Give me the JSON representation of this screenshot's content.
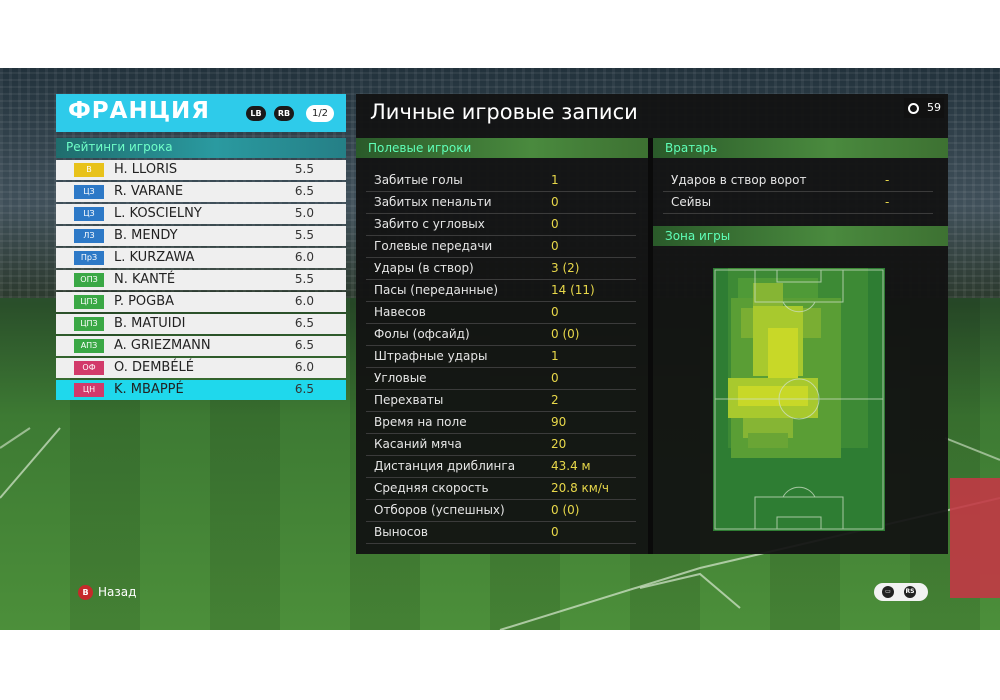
{
  "team": {
    "name": "ФРАНЦИЯ",
    "lb_label": "LB",
    "rb_label": "RB",
    "page_indicator": "1/2"
  },
  "ratings": {
    "title": "Рейтинги игрока",
    "players": [
      {
        "pos": "В",
        "pos_color": "#e8c21a",
        "name": "H. LLORIS",
        "rating": "5.5",
        "selected": false
      },
      {
        "pos": "ЦЗ",
        "pos_color": "#2d79c7",
        "name": "R. VARANE",
        "rating": "6.5",
        "selected": false
      },
      {
        "pos": "ЦЗ",
        "pos_color": "#2d79c7",
        "name": "L. KOSCIELNY",
        "rating": "5.0",
        "selected": false
      },
      {
        "pos": "ЛЗ",
        "pos_color": "#2d79c7",
        "name": "B. MENDY",
        "rating": "5.5",
        "selected": false
      },
      {
        "pos": "ПрЗ",
        "pos_color": "#2d79c7",
        "name": "L. KURZAWA",
        "rating": "6.0",
        "selected": false
      },
      {
        "pos": "ОПЗ",
        "pos_color": "#3aa845",
        "name": "N. KANTÉ",
        "rating": "5.5",
        "selected": false
      },
      {
        "pos": "ЦПЗ",
        "pos_color": "#3aa845",
        "name": "P. POGBA",
        "rating": "6.0",
        "selected": false
      },
      {
        "pos": "ЦПЗ",
        "pos_color": "#3aa845",
        "name": "B. MATUIDI",
        "rating": "6.5",
        "selected": false
      },
      {
        "pos": "АПЗ",
        "pos_color": "#3aa845",
        "name": "A. GRIEZMANN",
        "rating": "6.5",
        "selected": false
      },
      {
        "pos": "ОФ",
        "pos_color": "#d23a6a",
        "name": "O. DEMBÉLÉ",
        "rating": "6.0",
        "selected": false
      },
      {
        "pos": "ЦН",
        "pos_color": "#d23a6a",
        "name": "K. MBAPPÉ",
        "rating": "6.5",
        "selected": true
      }
    ]
  },
  "main": {
    "title": "Личные игровые записи",
    "timer": "59",
    "field_players_title": "Полевые игроки",
    "field_stats": [
      {
        "label": "Забитые голы",
        "value": "1"
      },
      {
        "label": "Забитых пенальти",
        "value": "0"
      },
      {
        "label": "Забито с угловых",
        "value": "0"
      },
      {
        "label": "Голевые передачи",
        "value": "0"
      },
      {
        "label": "Удары (в створ)",
        "value": "3 (2)"
      },
      {
        "label": "Пасы (переданные)",
        "value": "14 (11)"
      },
      {
        "label": "Навесов",
        "value": "0"
      },
      {
        "label": "Фолы (офсайд)",
        "value": "0 (0)"
      },
      {
        "label": "Штрафные удары",
        "value": "1"
      },
      {
        "label": "Угловые",
        "value": "0"
      },
      {
        "label": "Перехваты",
        "value": "2"
      },
      {
        "label": "Время на поле",
        "value": "90"
      },
      {
        "label": "Касаний мяча",
        "value": "20"
      },
      {
        "label": "Дистанция дриблинга",
        "value": "43.4 м"
      },
      {
        "label": "Средняя скорость",
        "value": "20.8 км/ч"
      },
      {
        "label": "Отборов (успешных)",
        "value": "0 (0)"
      },
      {
        "label": "Выносов",
        "value": "0"
      }
    ],
    "goalkeeper_title": "Вратарь",
    "goalkeeper_stats": [
      {
        "label": "Ударов в створ ворот",
        "value": "-"
      },
      {
        "label": "Сейвы",
        "value": "-"
      }
    ],
    "zone_title": "Зона игры"
  },
  "controls": {
    "back_button": "B",
    "back_label": "Назад",
    "rs_label": "RS"
  }
}
